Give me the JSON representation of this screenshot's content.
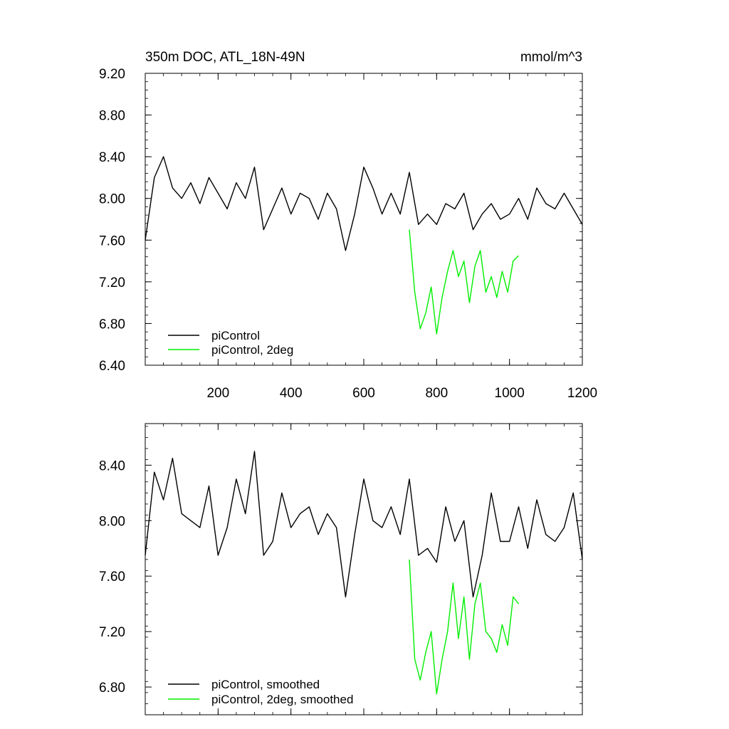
{
  "chart_data": [
    {
      "type": "line",
      "title": "350m DOC, ATL_18N-49N",
      "units": "mmol/m^3",
      "xlim": [
        0,
        1200
      ],
      "ylim": [
        6.4,
        9.2
      ],
      "x_ticks": [
        200,
        400,
        600,
        800,
        1000,
        1200
      ],
      "x_tick_labels": [
        "200",
        "400",
        "600",
        "800",
        "1000",
        "1200"
      ],
      "y_ticks": [
        6.4,
        6.8,
        7.2,
        7.6,
        8.0,
        8.4,
        8.8,
        9.2
      ],
      "y_tick_labels": [
        "6.40",
        "6.80",
        "7.20",
        "7.60",
        "8.00",
        "8.40",
        "8.80",
        "9.20"
      ],
      "legend_position": "bottom-left",
      "series": [
        {
          "name": "piControl",
          "color": "#000000",
          "x": [
            0,
            25,
            50,
            75,
            100,
            125,
            150,
            175,
            200,
            225,
            250,
            275,
            300,
            325,
            350,
            375,
            400,
            425,
            450,
            475,
            500,
            525,
            550,
            575,
            600,
            625,
            650,
            675,
            700,
            725,
            750,
            775,
            800,
            825,
            850,
            875,
            900,
            925,
            950,
            975,
            1000,
            1025,
            1050,
            1075,
            1100,
            1125,
            1150,
            1175,
            1200
          ],
          "y": [
            7.6,
            8.2,
            8.4,
            8.1,
            8.0,
            8.15,
            7.95,
            8.2,
            8.05,
            7.9,
            8.15,
            8.0,
            8.3,
            7.7,
            7.9,
            8.1,
            7.85,
            8.05,
            8.0,
            7.8,
            8.05,
            7.9,
            7.5,
            7.85,
            8.3,
            8.1,
            7.85,
            8.05,
            7.85,
            8.25,
            7.75,
            7.85,
            7.75,
            7.95,
            7.9,
            8.05,
            7.7,
            7.85,
            7.95,
            7.8,
            7.85,
            8.0,
            7.8,
            8.1,
            7.95,
            7.9,
            8.05,
            7.9,
            7.75
          ]
        },
        {
          "name": "piControl, 2deg",
          "color": "#00ee00",
          "x": [
            725,
            740,
            755,
            770,
            785,
            800,
            815,
            830,
            845,
            860,
            875,
            890,
            905,
            920,
            935,
            950,
            965,
            980,
            995,
            1010,
            1025
          ],
          "y": [
            7.7,
            7.1,
            6.75,
            6.9,
            7.15,
            6.7,
            7.05,
            7.3,
            7.5,
            7.25,
            7.4,
            7.0,
            7.35,
            7.5,
            7.1,
            7.25,
            7.05,
            7.3,
            7.1,
            7.4,
            7.45
          ]
        }
      ]
    },
    {
      "type": "line",
      "xlim": [
        0,
        1200
      ],
      "ylim": [
        6.6,
        8.7
      ],
      "x_ticks": [
        200,
        400,
        600,
        800,
        1000,
        1200
      ],
      "y_ticks": [
        6.8,
        7.2,
        7.6,
        8.0,
        8.4
      ],
      "y_tick_labels": [
        "6.80",
        "7.20",
        "7.60",
        "8.00",
        "8.40"
      ],
      "legend_position": "bottom-left",
      "series": [
        {
          "name": "piControl, smoothed",
          "color": "#000000",
          "x": [
            0,
            25,
            50,
            75,
            100,
            125,
            150,
            175,
            200,
            225,
            250,
            275,
            300,
            325,
            350,
            375,
            400,
            425,
            450,
            475,
            500,
            525,
            550,
            575,
            600,
            625,
            650,
            675,
            700,
            725,
            750,
            775,
            800,
            825,
            850,
            875,
            900,
            925,
            950,
            975,
            1000,
            1025,
            1050,
            1075,
            1100,
            1125,
            1150,
            1175,
            1200
          ],
          "y": [
            7.75,
            8.35,
            8.15,
            8.45,
            8.05,
            8.0,
            7.95,
            8.25,
            7.75,
            7.95,
            8.3,
            8.05,
            8.5,
            7.75,
            7.85,
            8.2,
            7.95,
            8.05,
            8.1,
            7.9,
            8.05,
            7.95,
            7.45,
            7.9,
            8.3,
            8.0,
            7.95,
            8.1,
            7.9,
            8.3,
            7.75,
            7.8,
            7.7,
            8.1,
            7.85,
            8.0,
            7.45,
            7.75,
            8.2,
            7.85,
            7.85,
            8.1,
            7.8,
            8.15,
            7.9,
            7.85,
            7.95,
            8.2,
            7.72
          ]
        },
        {
          "name": "piControl, 2deg, smoothed",
          "color": "#00ee00",
          "x": [
            725,
            740,
            755,
            770,
            785,
            800,
            815,
            830,
            845,
            860,
            875,
            890,
            905,
            920,
            935,
            950,
            965,
            980,
            995,
            1010,
            1025
          ],
          "y": [
            7.72,
            7.0,
            6.85,
            7.05,
            7.2,
            6.75,
            7.0,
            7.2,
            7.55,
            7.15,
            7.45,
            7.0,
            7.4,
            7.55,
            7.2,
            7.15,
            7.05,
            7.25,
            7.1,
            7.45,
            7.4
          ]
        }
      ]
    }
  ]
}
